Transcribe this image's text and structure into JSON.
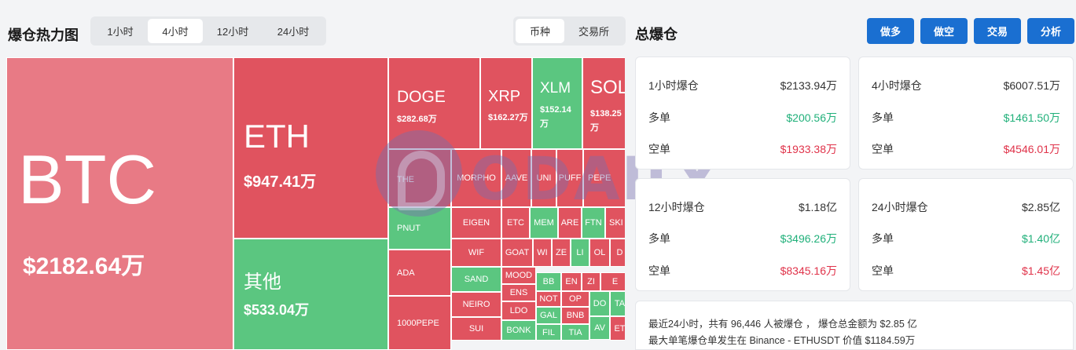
{
  "heatmap": {
    "title": "爆仓热力图",
    "time_tabs": [
      "1小时",
      "4小时",
      "12小时",
      "24小时"
    ],
    "active_time_tab": "4小时",
    "group_tabs": [
      "币种",
      "交易所"
    ],
    "active_group_tab": "币种",
    "big_tiles": {
      "btc": {
        "name": "BTC",
        "value": "$2182.64万"
      },
      "eth": {
        "name": "ETH",
        "value": "$947.41万"
      },
      "other": {
        "name": "其他",
        "value": "$533.04万"
      },
      "doge": {
        "name": "DOGE",
        "value": "$282.68万"
      },
      "xrp": {
        "name": "XRP",
        "value": "$162.27万"
      },
      "xlm": {
        "name": "XLM",
        "value": "$152.14万"
      },
      "sol": {
        "name": "SOL",
        "value": "$138.25万"
      }
    },
    "small_tiles": [
      "THE",
      "MORPHO",
      "AAVE",
      "UNI",
      "PUFF",
      "PEPE",
      "PNUT",
      "EIGEN",
      "ETC",
      "MEM",
      "ARE",
      "FTN",
      "SKI",
      "ADA",
      "WIF",
      "GOAT",
      "WI",
      "ZE",
      "LI",
      "OL",
      "D",
      "SAND",
      "MOOD",
      "BB",
      "EN",
      "ZI",
      "E",
      "1000PEPE",
      "NEIRO",
      "ENS",
      "NOT",
      "OP",
      "DO",
      "TA",
      "SUI",
      "LDO",
      "GAL",
      "BNB",
      "AV",
      "BONK",
      "FIL",
      "TIA",
      "ET"
    ]
  },
  "summary": {
    "title": "总爆仓",
    "buttons": [
      "做多",
      "做空",
      "交易",
      "分析"
    ],
    "cards": [
      {
        "label": "1小时爆仓",
        "total": "$2133.94万",
        "long_label": "多单",
        "long": "$200.56万",
        "short_label": "空单",
        "short": "$1933.38万"
      },
      {
        "label": "4小时爆仓",
        "total": "$6007.51万",
        "long_label": "多单",
        "long": "$1461.50万",
        "short_label": "空单",
        "short": "$4546.01万"
      },
      {
        "label": "12小时爆仓",
        "total": "$1.18亿",
        "long_label": "多单",
        "long": "$3496.26万",
        "short_label": "空单",
        "short": "$8345.16万"
      },
      {
        "label": "24小时爆仓",
        "total": "$2.85亿",
        "long_label": "多单",
        "long": "$1.40亿",
        "short_label": "空单",
        "short": "$1.45亿"
      }
    ],
    "note_line1": "最近24小时，共有 96,446 人被爆仓 ， 爆仓总金额为 $2.85 亿",
    "note_line2": "最大单笔爆仓单发生在 Binance - ETHUSDT 价值 $1184.59万"
  },
  "watermark": "ODAILY",
  "colors": {
    "long": "#20b07a",
    "short": "#e0334a",
    "tile_red": "#e0535f",
    "tile_green": "#5bc680",
    "button": "#1a6fd1"
  }
}
